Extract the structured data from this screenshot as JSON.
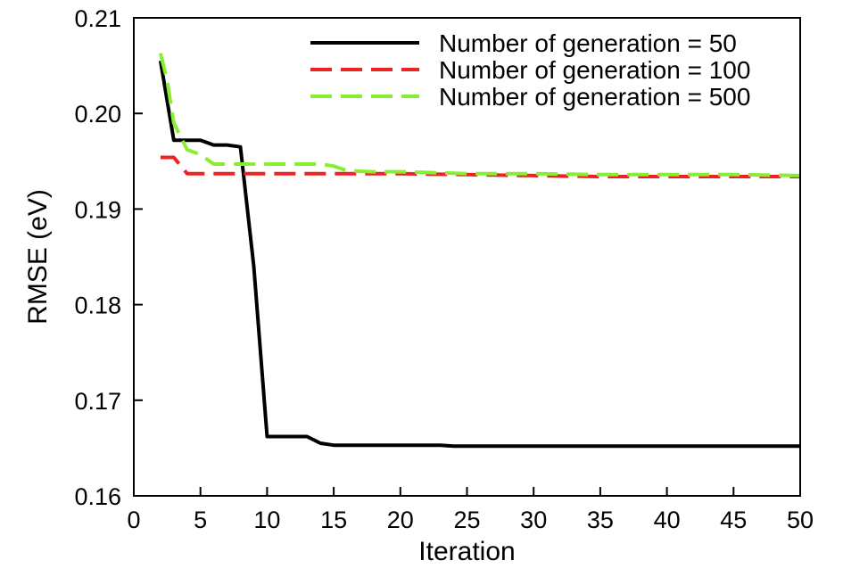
{
  "chart_data": {
    "type": "line",
    "title": "",
    "xlabel": "Iteration",
    "ylabel": "RMSE (eV)",
    "xlim": [
      0,
      50
    ],
    "ylim": [
      0.16,
      0.21
    ],
    "xticks": [
      0,
      5,
      10,
      15,
      20,
      25,
      30,
      35,
      40,
      45,
      50
    ],
    "yticks": [
      0.16,
      0.17,
      0.18,
      0.19,
      0.2,
      0.21
    ],
    "xtick_labels": [
      "0",
      "5",
      "10",
      "15",
      "20",
      "25",
      "30",
      "35",
      "40",
      "45",
      "50"
    ],
    "ytick_labels": [
      "0.16",
      "0.17",
      "0.18",
      "0.19",
      "0.20",
      "0.21"
    ],
    "grid": false,
    "legend_position": "top-right",
    "series": [
      {
        "name": "Number of generation = 50",
        "color": "#000000",
        "style": "solid",
        "points": [
          [
            2,
            0.2055
          ],
          [
            3,
            0.1972
          ],
          [
            4,
            0.1972
          ],
          [
            5,
            0.1972
          ],
          [
            6,
            0.1967
          ],
          [
            7,
            0.1967
          ],
          [
            8,
            0.1965
          ],
          [
            9,
            0.184
          ],
          [
            10,
            0.1662
          ],
          [
            11,
            0.1662
          ],
          [
            12,
            0.1662
          ],
          [
            13,
            0.1662
          ],
          [
            14,
            0.1655
          ],
          [
            15,
            0.1653
          ],
          [
            16,
            0.1653
          ],
          [
            20,
            0.1653
          ],
          [
            23,
            0.1653
          ],
          [
            24,
            0.1652
          ],
          [
            30,
            0.1652
          ],
          [
            40,
            0.1652
          ],
          [
            50,
            0.1652
          ]
        ]
      },
      {
        "name": "Number of generation = 100",
        "color": "#ee2222",
        "style": "dashed",
        "points": [
          [
            2,
            0.1954
          ],
          [
            3,
            0.1954
          ],
          [
            4,
            0.1937
          ],
          [
            5,
            0.1937
          ],
          [
            10,
            0.1937
          ],
          [
            15,
            0.1937
          ],
          [
            20,
            0.1937
          ],
          [
            25,
            0.1936
          ],
          [
            30,
            0.1935
          ],
          [
            35,
            0.1934
          ],
          [
            40,
            0.1934
          ],
          [
            45,
            0.1934
          ],
          [
            50,
            0.1934
          ]
        ]
      },
      {
        "name": "Number of generation = 500",
        "color": "#88ee33",
        "style": "dashed",
        "points": [
          [
            2,
            0.2063
          ],
          [
            2.5,
            0.2035
          ],
          [
            3,
            0.199
          ],
          [
            4,
            0.1962
          ],
          [
            5,
            0.1957
          ],
          [
            6,
            0.1947
          ],
          [
            7,
            0.1947
          ],
          [
            8,
            0.1947
          ],
          [
            10,
            0.1947
          ],
          [
            12,
            0.1947
          ],
          [
            14,
            0.1947
          ],
          [
            15,
            0.1945
          ],
          [
            16,
            0.194
          ],
          [
            18,
            0.1939
          ],
          [
            20,
            0.1939
          ],
          [
            25,
            0.1937
          ],
          [
            30,
            0.1937
          ],
          [
            35,
            0.1936
          ],
          [
            40,
            0.1936
          ],
          [
            45,
            0.1936
          ],
          [
            50,
            0.1935
          ]
        ]
      }
    ]
  }
}
